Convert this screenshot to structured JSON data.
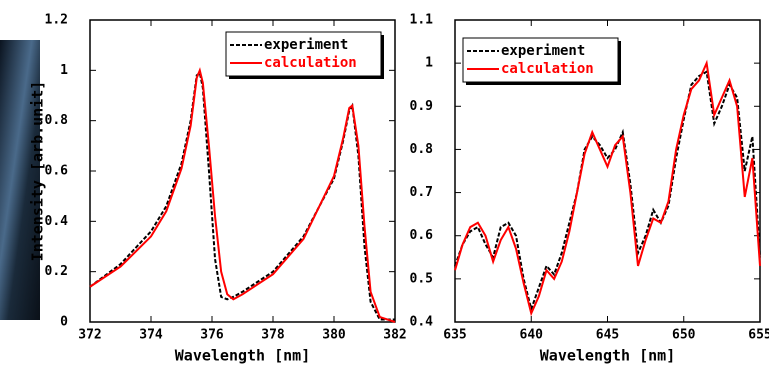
{
  "chart_data": [
    {
      "type": "line",
      "xlabel": "Wavelength [nm]",
      "ylabel": "Intensity [arb.unit]",
      "x": [
        372,
        373,
        374,
        374.5,
        375,
        375.3,
        375.5,
        375.6,
        375.7,
        375.9,
        376.1,
        376.3,
        376.5,
        376.7,
        377,
        378,
        379,
        380,
        380.3,
        380.5,
        380.6,
        380.8,
        381,
        381.2,
        381.5,
        382
      ],
      "series": [
        {
          "name": "experiment",
          "color": "#000000",
          "dash": true,
          "values": [
            0.14,
            0.23,
            0.36,
            0.46,
            0.63,
            0.8,
            0.98,
            0.99,
            0.93,
            0.6,
            0.25,
            0.1,
            0.09,
            0.1,
            0.12,
            0.2,
            0.34,
            0.57,
            0.72,
            0.84,
            0.86,
            0.66,
            0.3,
            0.08,
            0.01,
            0.01
          ]
        },
        {
          "name": "calculation",
          "color": "#ff0000",
          "dash": false,
          "values": [
            0.14,
            0.22,
            0.34,
            0.44,
            0.61,
            0.78,
            0.97,
            1.0,
            0.95,
            0.7,
            0.42,
            0.2,
            0.11,
            0.09,
            0.11,
            0.19,
            0.33,
            0.58,
            0.73,
            0.85,
            0.86,
            0.7,
            0.38,
            0.12,
            0.02,
            0.0
          ]
        }
      ],
      "xlim": [
        372,
        382
      ],
      "ylim": [
        0,
        1.2
      ],
      "xticks": [
        372,
        374,
        376,
        378,
        380,
        382
      ],
      "yticks": [
        0,
        0.2,
        0.4,
        0.6,
        0.8,
        1,
        1.2
      ],
      "legend": "upper right"
    },
    {
      "type": "line",
      "xlabel": "Wavelength [nm]",
      "x": [
        635,
        635.5,
        636,
        636.5,
        637,
        637.5,
        638,
        638.5,
        639,
        639.5,
        640,
        640.5,
        641,
        641.5,
        642,
        642.5,
        643,
        643.5,
        644,
        644.5,
        645,
        645.5,
        646,
        646.5,
        647,
        647.5,
        648,
        648.5,
        649,
        649.5,
        650,
        650.5,
        651,
        651.5,
        652,
        652.5,
        653,
        653.5,
        654,
        654.5,
        655
      ],
      "series": [
        {
          "name": "experiment",
          "color": "#000000",
          "dash": true,
          "values": [
            0.53,
            0.58,
            0.61,
            0.62,
            0.58,
            0.55,
            0.62,
            0.63,
            0.6,
            0.5,
            0.43,
            0.48,
            0.53,
            0.51,
            0.56,
            0.63,
            0.7,
            0.8,
            0.83,
            0.81,
            0.78,
            0.8,
            0.84,
            0.72,
            0.56,
            0.6,
            0.66,
            0.63,
            0.67,
            0.78,
            0.87,
            0.95,
            0.97,
            0.98,
            0.86,
            0.9,
            0.95,
            0.92,
            0.75,
            0.83,
            0.55
          ]
        },
        {
          "name": "calculation",
          "color": "#ff0000",
          "dash": false,
          "values": [
            0.52,
            0.58,
            0.62,
            0.63,
            0.6,
            0.54,
            0.59,
            0.62,
            0.57,
            0.49,
            0.42,
            0.46,
            0.52,
            0.5,
            0.54,
            0.61,
            0.7,
            0.79,
            0.84,
            0.8,
            0.76,
            0.81,
            0.83,
            0.7,
            0.53,
            0.59,
            0.64,
            0.63,
            0.68,
            0.8,
            0.88,
            0.94,
            0.96,
            1.0,
            0.88,
            0.92,
            0.96,
            0.9,
            0.69,
            0.78,
            0.53
          ]
        }
      ],
      "xlim": [
        635,
        655
      ],
      "ylim": [
        0.4,
        1.1
      ],
      "xticks": [
        635,
        640,
        645,
        650,
        655
      ],
      "yticks": [
        0.4,
        0.5,
        0.6,
        0.7,
        0.8,
        0.9,
        1,
        1.1
      ],
      "legend": "upper left"
    }
  ]
}
